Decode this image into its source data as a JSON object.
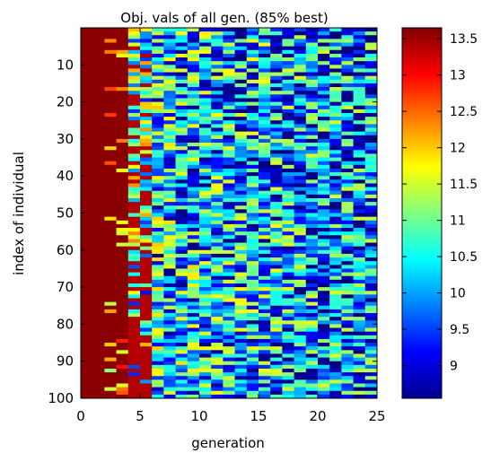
{
  "chart_data": {
    "type": "heatmap",
    "title": "Obj. vals of all gen. (85% best)",
    "xlabel": "generation",
    "ylabel": "index of individual",
    "xlim": [
      0,
      25
    ],
    "ylim": [
      0,
      100
    ],
    "x_ticks": [
      "0",
      "5",
      "10",
      "15",
      "20",
      "25"
    ],
    "y_ticks": [
      "10",
      "20",
      "30",
      "40",
      "50",
      "60",
      "70",
      "80",
      "90",
      "100"
    ],
    "colorbar": {
      "range": [
        8.55,
        13.65
      ],
      "ticks": [
        "9",
        "9.5",
        "10",
        "10.5",
        "11",
        "11.5",
        "12",
        "12.5",
        "13",
        "13.5"
      ],
      "colormap": "jet"
    },
    "grid": false
  }
}
